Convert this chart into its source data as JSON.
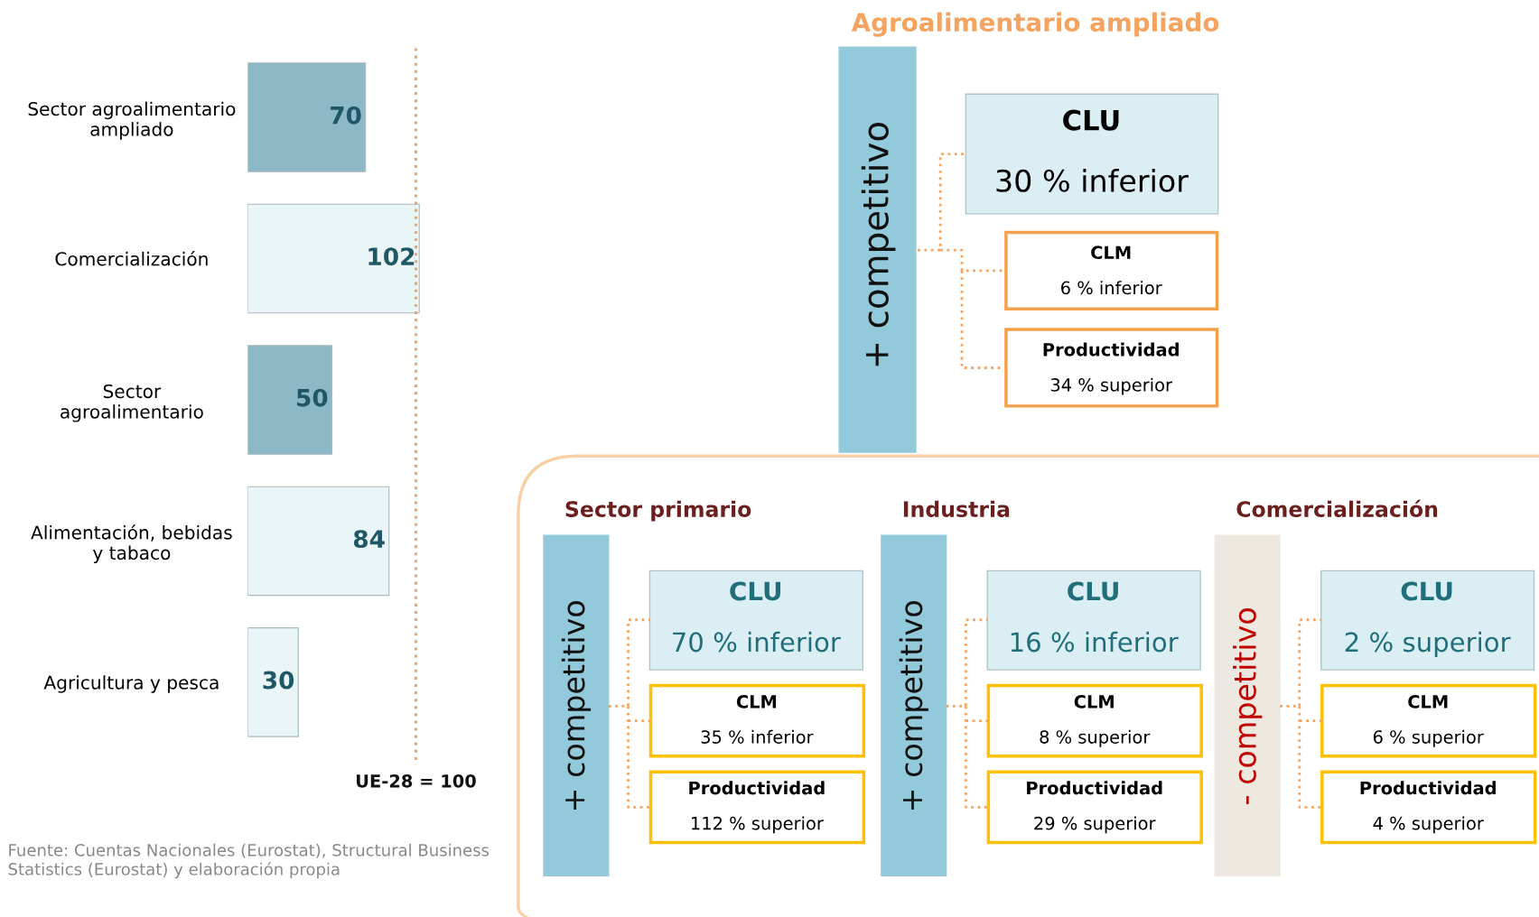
{
  "chart_data": [
    {
      "type": "bar",
      "orientation": "horizontal",
      "categories": [
        "Sector agroalimentario\nampliado",
        "Comercialización",
        "Sector\nagroalimentario",
        "Alimentación, bebidas\ny tabaco",
        "Agricultura y pesca"
      ],
      "values": [
        70,
        102,
        50,
        84,
        30
      ],
      "colors": [
        "#8cb9c5",
        "#e9f5f7",
        "#8cb9c5",
        "#e9f5f7",
        "#e9f5f7"
      ],
      "data_labels": true,
      "grid": false,
      "legend": false,
      "tick_labels": "y",
      "ref_lines": [
        {
          "axis": "x",
          "value": 100,
          "label": "UE-28 = 100",
          "color": "#f4a460",
          "line_style": "dotted"
        }
      ],
      "annotations": [
        "Fuente: Cuentas Nacionales (Eurostat), Structural Business\nStatistics (Eurostat) y elaboración propia"
      ]
    },
    {
      "type": "other",
      "title": "Agroalimentario ampliado",
      "annotations": [
        "+ competitivo",
        "CLU",
        "30 % inferior",
        "CLM",
        "6 % inferior",
        "Productividad",
        "34 % superior",
        "Sector primario",
        "+ competitivo",
        "CLU",
        "70 % inferior",
        "CLM",
        "35 % inferior",
        "Productividad",
        "112 % superior",
        "Industria",
        "+ competitivo",
        "CLU",
        "16 % inferior",
        "CLM",
        "8 % superior",
        "Productividad",
        "29 % superior",
        "Comercialización",
        "- competitivo",
        "CLU",
        "2 % superior",
        "CLM",
        "6 % superior",
        "Productividad",
        "4 % superior"
      ]
    }
  ]
}
